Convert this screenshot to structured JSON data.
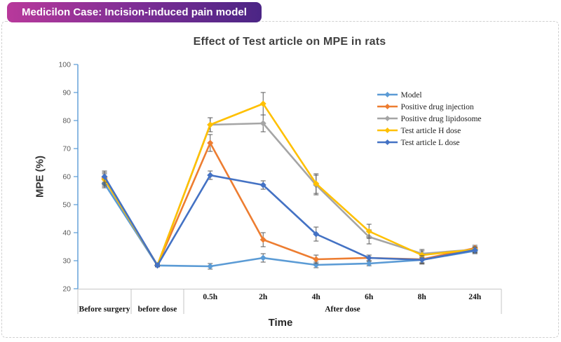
{
  "header": {
    "badge": "Medicilon Case: Incision-induced pain model",
    "badge_gradient": [
      "#b8399b",
      "#7e2e95",
      "#4b2585"
    ]
  },
  "chart_data": {
    "type": "line",
    "title": "Effect of Test article on MPE in rats",
    "ylabel": "MPE (%)",
    "xlabel": "Time",
    "ylim": [
      20,
      100
    ],
    "ytick_step": 10,
    "yticks": [
      20,
      30,
      40,
      50,
      60,
      70,
      80,
      90,
      100
    ],
    "grid": false,
    "legend_position": "inside-right",
    "axis_color": "#5B9BD5",
    "tick_label_color": "#595959",
    "error_bar_color": "#595959",
    "box_line_color": "#c6c6c6",
    "categories": [
      "Before surgery",
      "before dose",
      "0.5h",
      "2h",
      "4h",
      "6h",
      "8h",
      "24h"
    ],
    "group_labels": [
      "Before surgery",
      "before dose",
      "After dose"
    ],
    "after_dose_categories": [
      "0.5h",
      "2h",
      "4h",
      "6h",
      "8h",
      "24h"
    ],
    "series": [
      {
        "name": "Model",
        "color": "#5B9BD5",
        "values": [
          57.5,
          28.3,
          28.0,
          31.0,
          28.5,
          29.0,
          30.3,
          33.5
        ],
        "errors": [
          1.5,
          0.5,
          1.0,
          1.5,
          1.0,
          0.8,
          1.0,
          1.0
        ]
      },
      {
        "name": "Positive drug injection",
        "color": "#ED7D31",
        "values": [
          59.5,
          28.4,
          72.0,
          37.5,
          30.5,
          31.0,
          30.5,
          34.5
        ],
        "errors": [
          2.0,
          0.5,
          3.0,
          2.5,
          1.5,
          1.0,
          1.5,
          1.0
        ]
      },
      {
        "name": "Positive drug lipidosome",
        "color": "#A5A5A5",
        "values": [
          59.0,
          28.4,
          78.5,
          79.0,
          57.0,
          38.5,
          32.5,
          34.0
        ],
        "errors": [
          2.5,
          0.5,
          2.5,
          3.0,
          3.5,
          2.5,
          1.5,
          1.0
        ]
      },
      {
        "name": "Test article H dose",
        "color": "#FFC000",
        "values": [
          59.0,
          28.4,
          78.5,
          86.0,
          57.5,
          40.5,
          32.0,
          34.0
        ],
        "errors": [
          2.0,
          0.5,
          2.5,
          4.0,
          3.5,
          2.5,
          1.5,
          1.0
        ]
      },
      {
        "name": "Test article L dose",
        "color": "#4472C4",
        "values": [
          60.0,
          28.3,
          60.5,
          57.0,
          39.5,
          31.0,
          30.3,
          33.8
        ],
        "errors": [
          2.0,
          0.5,
          1.5,
          1.5,
          2.5,
          1.0,
          1.5,
          1.0
        ]
      }
    ]
  }
}
